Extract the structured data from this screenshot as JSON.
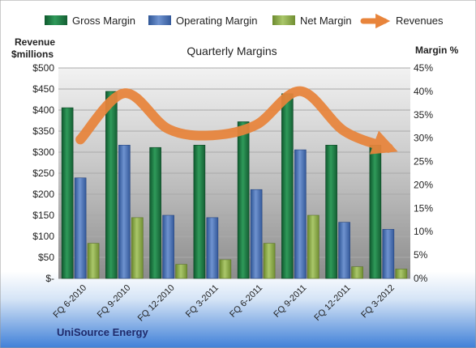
{
  "chart_data": {
    "type": "bar",
    "title": "Quarterly Margins",
    "company": "UniSource Energy",
    "left_axis_label_line1": "Revenue",
    "left_axis_label_line2": "$millions",
    "right_axis_label": "Margin %",
    "legend_placement": "top",
    "grid": true,
    "categories": [
      "FQ 6-2010",
      "FQ 9-2010",
      "FQ 12-2010",
      "FQ 3-2011",
      "FQ 6-2011",
      "FQ 9-2011",
      "FQ 12-2011",
      "FQ 3-2012"
    ],
    "y_left": {
      "min": 0,
      "max": 500,
      "step": 50,
      "tick_labels": [
        "$-",
        "$50",
        "$100",
        "$150",
        "$200",
        "$250",
        "$300",
        "$350",
        "$400",
        "$450",
        "$500"
      ]
    },
    "y_right": {
      "min": 0,
      "max": 45,
      "step": 5,
      "tick_labels": [
        "0%",
        "5%",
        "10%",
        "15%",
        "20%",
        "25%",
        "30%",
        "35%",
        "40%",
        "45%"
      ]
    },
    "series": [
      {
        "name": "Gross Margin",
        "axis": "right",
        "color": "#1e7b45",
        "values": [
          36.5,
          40,
          28,
          28.5,
          33.5,
          39.5,
          28.5,
          28.5
        ]
      },
      {
        "name": "Operating Margin",
        "axis": "right",
        "color": "#4a6fb5",
        "values": [
          21.5,
          28.5,
          13.5,
          13,
          19,
          27.5,
          12,
          10.5
        ]
      },
      {
        "name": "Net Margin",
        "axis": "right",
        "color": "#8fa94a",
        "values": [
          7.5,
          13,
          3,
          4,
          7.5,
          13.5,
          2.5,
          2
        ]
      },
      {
        "name": "Revenues",
        "axis": "left",
        "type": "line",
        "color": "#e8843b",
        "values": [
          330,
          440,
          355,
          340,
          365,
          445,
          350,
          310
        ]
      }
    ]
  }
}
